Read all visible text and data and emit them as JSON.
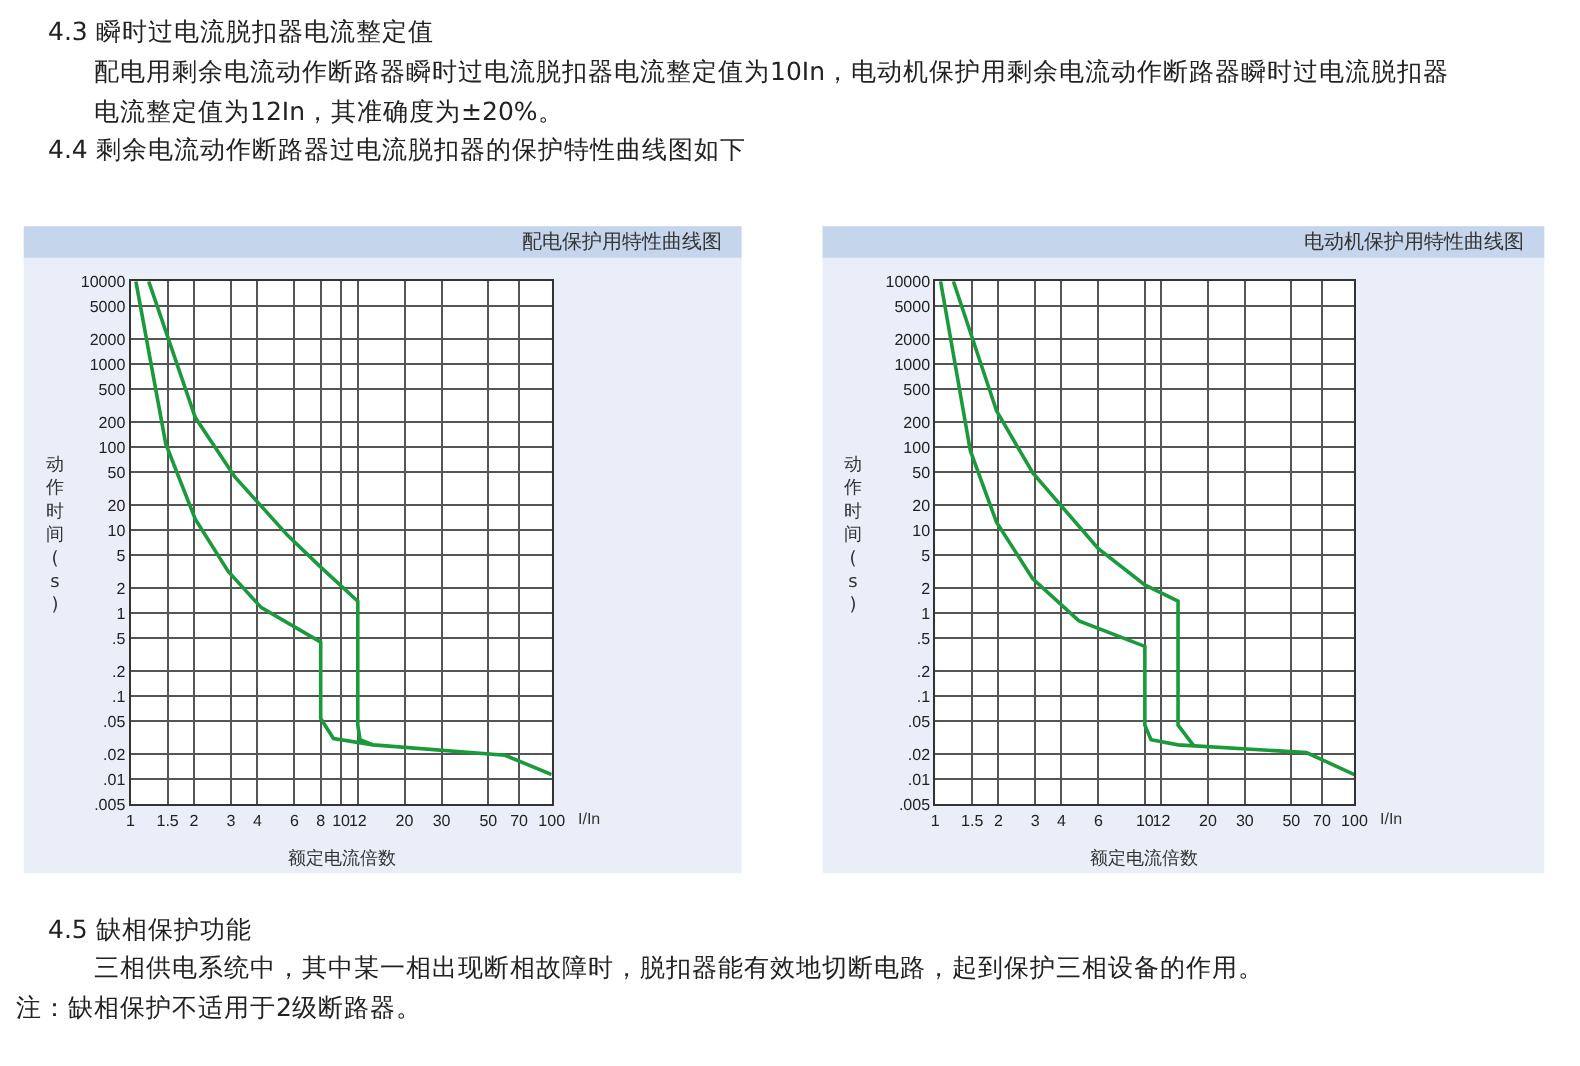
{
  "chart_data": [
    {
      "type": "other",
      "annotations": [
        "4.3 瞬时过电流脱扣器电流整定值",
        "配电用剩余电流动作断路器瞬时过电流脱扣器电流整定值为10In，电动机保护用剩余电流动作断路器瞬时过电流脱扣器电流整定值为12In，其准确度为±20%。",
        "4.4 剩余电流动作断路器过电流脱扣器的保护特性曲线图如下"
      ]
    },
    {
      "type": "line",
      "title": "配电保护用特性曲线图",
      "xlabel": "额定电流倍数",
      "ylabel": "动作时间(s)",
      "annotations": [
        "I/In"
      ],
      "log": "xy",
      "grid": true,
      "marker": "none",
      "line_style": "solid",
      "xlim": [
        1,
        100
      ],
      "xticks": [
        1,
        1.5,
        2,
        3,
        4,
        6,
        8,
        10,
        12,
        20,
        30,
        50,
        70,
        100
      ],
      "ylim": [
        0.005,
        10000
      ],
      "yticks": [
        {
          "value": 0.005,
          "label": ".005"
        },
        {
          "value": 0.01,
          "label": ".01"
        },
        {
          "value": 0.02,
          "label": ".02"
        },
        {
          "value": 0.05,
          "label": ".05"
        },
        {
          "value": 0.1,
          "label": ".1"
        },
        {
          "value": 0.2,
          "label": ".2"
        },
        {
          "value": 0.5,
          "label": ".5"
        },
        1,
        2,
        5,
        10,
        20,
        50,
        100,
        200,
        500,
        1000,
        2000,
        5000,
        10000
      ],
      "series": [
        {
          "color": "#1a9a3a",
          "x": [
            1.06,
            1.47,
            2.03,
            2.91,
            4.18,
            8,
            8,
            9.2,
            14.2,
            60,
            100
          ],
          "values": [
            10000,
            110,
            13.6,
            3.2,
            1.17,
            0.45,
            0.054,
            0.031,
            0.026,
            0.0195,
            0.0114
          ]
        },
        {
          "color": "#1a9a3a",
          "x": [
            1.22,
            2.03,
            3.13,
            5.57,
            8,
            12,
            12,
            12.3,
            14.2
          ],
          "values": [
            10000,
            228,
            44,
            8.7,
            3.6,
            1.4,
            0.045,
            0.03,
            0.026
          ]
        }
      ]
    },
    {
      "type": "line",
      "title": "电动机保护用特性曲线图",
      "xlabel": "额定电流倍数",
      "ylabel": "动作时间(s)",
      "annotations": [
        "I/In"
      ],
      "log": "xy",
      "grid": true,
      "marker": "none",
      "line_style": "solid",
      "xlim": [
        1,
        100
      ],
      "xticks": [
        1,
        1.5,
        2,
        3,
        4,
        6,
        10,
        12,
        20,
        30,
        50,
        70,
        100
      ],
      "ylim": [
        0.005,
        10000
      ],
      "yticks": [
        {
          "value": 0.005,
          "label": ".005"
        },
        {
          "value": 0.01,
          "label": ".01"
        },
        {
          "value": 0.02,
          "label": ".02"
        },
        {
          "value": 0.05,
          "label": ".05"
        },
        {
          "value": 0.1,
          "label": ".1"
        },
        {
          "value": 0.2,
          "label": ".2"
        },
        {
          "value": 0.5,
          "label": ".5"
        },
        1,
        2,
        5,
        10,
        20,
        50,
        100,
        200,
        500,
        1000,
        2000,
        5000,
        10000
      ],
      "series": [
        {
          "color": "#1a9a3a",
          "x": [
            1.06,
            1.47,
            1.96,
            2.92,
            4.85,
            10,
            10,
            10.7,
            14.4,
            59,
            100
          ],
          "values": [
            10000,
            91,
            12.5,
            2.6,
            0.81,
            0.4,
            0.045,
            0.03,
            0.026,
            0.021,
            0.0114
          ]
        },
        {
          "color": "#1a9a3a",
          "x": [
            1.22,
            1.96,
            2.92,
            6.0,
            10,
            14.4,
            14.4,
            17.2
          ],
          "values": [
            10000,
            275,
            49,
            6.0,
            2.2,
            1.4,
            0.045,
            0.025
          ]
        }
      ]
    },
    {
      "type": "other",
      "annotations": [
        "4.5 缺相保护功能",
        "三相供电系统中，其中某一相出现断相故障时，脱扣器能有效地切断电路，起到保护三相设备的作用。",
        "注：缺相保护不适用于2级断路器。"
      ]
    }
  ]
}
